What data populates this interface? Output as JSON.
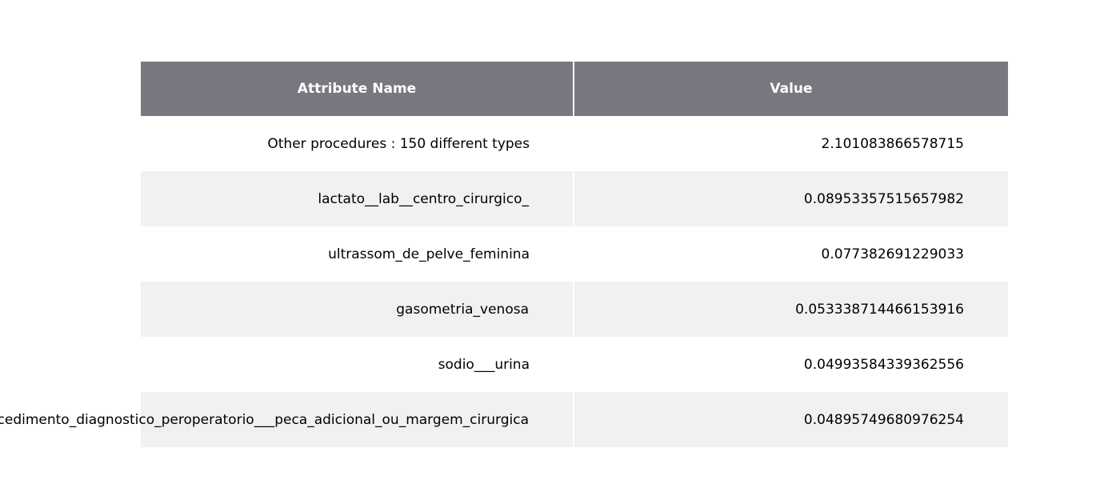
{
  "chart_data": {
    "type": "table",
    "columns": [
      "Attribute Name",
      "Value"
    ],
    "rows": [
      {
        "name": "Other procedures : 150 different types",
        "value": "2.101083866578715"
      },
      {
        "name": "lactato__lab__centro_cirurgico_",
        "value": "0.08953357515657982"
      },
      {
        "name": "ultrassom_de_pelve_feminina",
        "value": "0.077382691229033"
      },
      {
        "name": "gasometria_venosa",
        "value": "0.053338714466153916"
      },
      {
        "name": "sodio___urina",
        "value": "0.04993584339362556"
      },
      {
        "name": "procedimento_diagnostico_peroperatorio___peca_adicional_ou_margem_cirurgica",
        "value": "0.04895749680976254"
      }
    ]
  },
  "colors": {
    "header_bg": "#797880",
    "row_alt_bg": "#f1f1f1",
    "row_bg": "#ffffff"
  }
}
